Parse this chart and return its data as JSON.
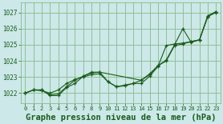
{
  "bg_color": "#cce8e8",
  "grid_color": "#88bb88",
  "line_color": "#1a5c1a",
  "marker_color": "#1a5c1a",
  "xlabel": "Graphe pression niveau de la mer (hPa)",
  "xlim": [
    -0.5,
    23.5
  ],
  "ylim": [
    1021.4,
    1027.6
  ],
  "yticks": [
    1022,
    1023,
    1024,
    1025,
    1026,
    1027
  ],
  "xticks": [
    0,
    1,
    2,
    3,
    4,
    5,
    6,
    7,
    8,
    9,
    10,
    11,
    12,
    13,
    14,
    15,
    16,
    17,
    18,
    19,
    20,
    21,
    22,
    23
  ],
  "series1_x": [
    0,
    1,
    2,
    3,
    4,
    5,
    6,
    7,
    8,
    9,
    10,
    11,
    12,
    13,
    14,
    15,
    16,
    17,
    18,
    19,
    20,
    21,
    22,
    23
  ],
  "series1_y": [
    1022.0,
    1022.2,
    1022.2,
    1021.85,
    1021.85,
    1022.35,
    1022.6,
    1023.05,
    1023.25,
    1023.3,
    1022.7,
    1022.4,
    1022.45,
    1022.6,
    1022.8,
    1023.2,
    1023.7,
    1024.05,
    1025.0,
    1026.0,
    1025.15,
    1025.3,
    1026.8,
    1027.05
  ],
  "series2_x": [
    0,
    1,
    2,
    3,
    4,
    5,
    6,
    7,
    8,
    9,
    14,
    15,
    16,
    17,
    18,
    19,
    20,
    21,
    22,
    23
  ],
  "series2_y": [
    1022.0,
    1022.2,
    1022.2,
    1021.9,
    1021.95,
    1022.4,
    1022.8,
    1023.05,
    1023.3,
    1023.3,
    1022.8,
    1023.15,
    1023.7,
    1024.0,
    1024.95,
    1025.05,
    1025.2,
    1025.3,
    1026.75,
    1027.05
  ],
  "series3_x": [
    0,
    1,
    2,
    3,
    4,
    5,
    6,
    7,
    8,
    9,
    10,
    11,
    12,
    13,
    14,
    15,
    16,
    17,
    18,
    19,
    20,
    21,
    22,
    23
  ],
  "series3_y": [
    1022.0,
    1022.2,
    1022.15,
    1022.0,
    1022.2,
    1022.6,
    1022.85,
    1023.0,
    1023.15,
    1023.2,
    1022.7,
    1022.4,
    1022.5,
    1022.6,
    1022.6,
    1023.05,
    1023.65,
    1024.95,
    1025.05,
    1025.1,
    1025.2,
    1025.3,
    1026.75,
    1027.0
  ]
}
